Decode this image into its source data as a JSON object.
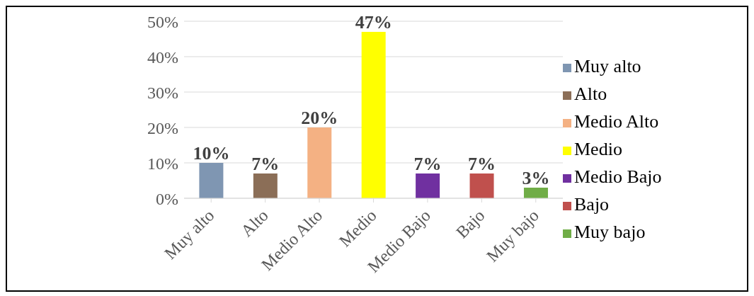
{
  "chart_data": {
    "type": "bar",
    "categories": [
      "Muy alto",
      "Alto",
      "Medio Alto",
      "Medio",
      "Medio Bajo",
      "Bajo",
      "Muy bajo"
    ],
    "stacked": true,
    "series": [
      {
        "name": "Muy alto",
        "color": "#7f96b2",
        "values": [
          10,
          null,
          null,
          null,
          null,
          null,
          null
        ],
        "value_labels": [
          "10%",
          null,
          null,
          null,
          null,
          null,
          null
        ]
      },
      {
        "name": "Alto",
        "color": "#8b6e57",
        "values": [
          null,
          7,
          null,
          null,
          null,
          null,
          null
        ],
        "value_labels": [
          null,
          "7%",
          null,
          null,
          null,
          null,
          null
        ]
      },
      {
        "name": "Medio Alto",
        "color": "#f4b183",
        "values": [
          null,
          null,
          20,
          null,
          null,
          null,
          null
        ],
        "value_labels": [
          null,
          null,
          "20%",
          null,
          null,
          null,
          null
        ]
      },
      {
        "name": "Medio",
        "color": "#ffff00",
        "values": [
          null,
          null,
          null,
          47,
          null,
          null,
          null
        ],
        "value_labels": [
          null,
          null,
          null,
          "47%",
          null,
          null,
          null
        ]
      },
      {
        "name": "Medio Bajo",
        "color": "#7030a0",
        "values": [
          null,
          null,
          null,
          null,
          7,
          null,
          null
        ],
        "value_labels": [
          null,
          null,
          null,
          null,
          "7%",
          null,
          null
        ]
      },
      {
        "name": "Bajo",
        "color": "#c0504d",
        "values": [
          null,
          null,
          null,
          null,
          null,
          7,
          null
        ],
        "value_labels": [
          null,
          null,
          null,
          null,
          null,
          "7%",
          null
        ]
      },
      {
        "name": "Muy bajo",
        "color": "#70ad47",
        "values": [
          null,
          null,
          null,
          null,
          null,
          null,
          3
        ],
        "value_labels": [
          null,
          null,
          null,
          null,
          null,
          null,
          "3%"
        ]
      }
    ],
    "ylim": [
      0,
      50
    ],
    "yticks": [
      {
        "value": 0,
        "label": "0%"
      },
      {
        "value": 10,
        "label": "10%"
      },
      {
        "value": 20,
        "label": "20%"
      },
      {
        "value": 30,
        "label": "30%"
      },
      {
        "value": 40,
        "label": "40%"
      },
      {
        "value": 50,
        "label": "50%"
      }
    ],
    "grid": "y",
    "legend": "right"
  }
}
